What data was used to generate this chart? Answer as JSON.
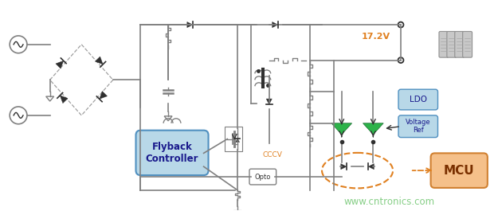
{
  "bg_color": "#ffffff",
  "lc": "#808080",
  "lcd": "#303030",
  "green_color": "#2db34a",
  "blue_box_color": "#b8d8e8",
  "blue_box_edge": "#5090c0",
  "orange_box_color": "#f5c08a",
  "orange_box_edge": "#d08030",
  "orange_dashed": "#e08020",
  "watermark_color": "#80cc80",
  "voltage_label": "17.2V",
  "ldo_label": "LDO",
  "vref_label": "Voltage\nRef",
  "mcu_label": "MCU",
  "opto_label": "Opto",
  "cccv_label": "CCCV",
  "flyback_label": "Flyback\nController",
  "watermark": "www.cntronics.com"
}
